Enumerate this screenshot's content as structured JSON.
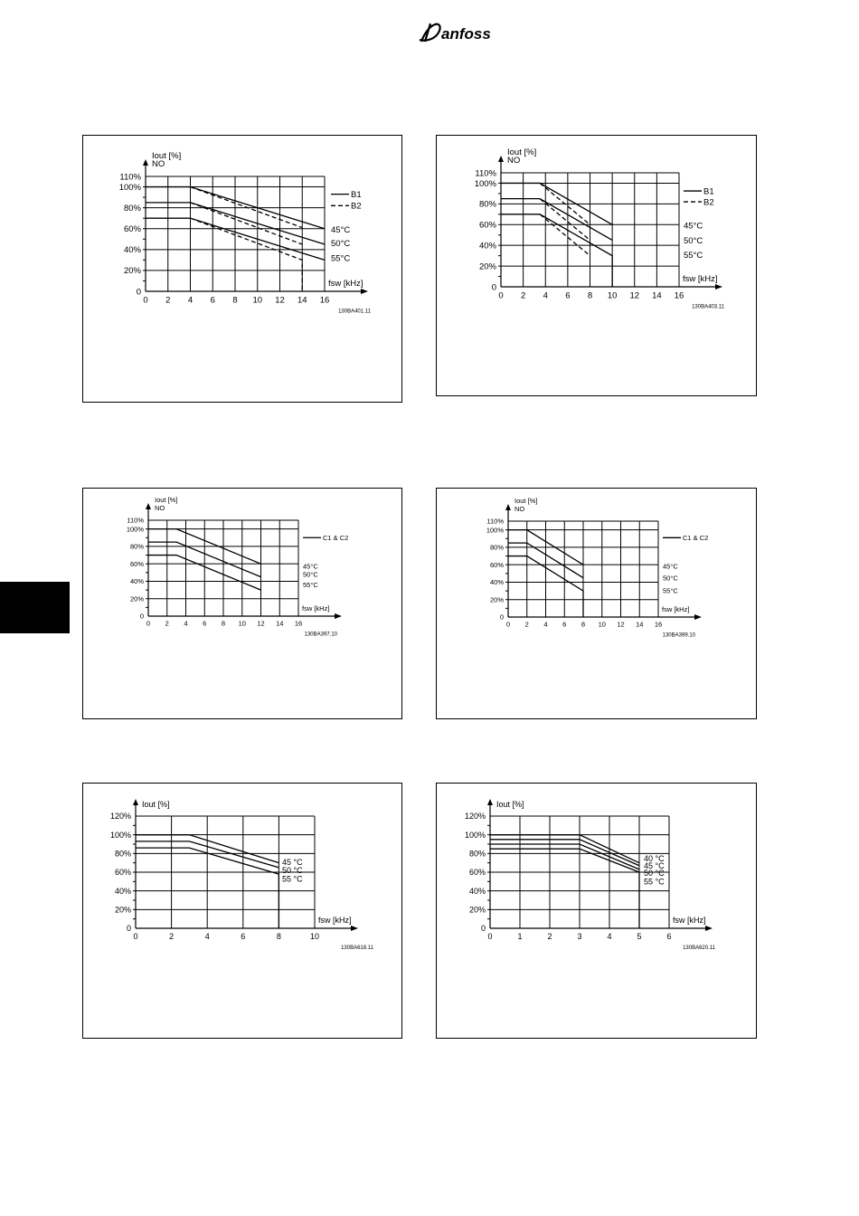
{
  "header": {
    "logo_text": "Danfoss"
  },
  "colors": {
    "line": "#000000",
    "background": "#ffffff",
    "side_tab": "#000000"
  },
  "chart_data": [
    {
      "type": "line",
      "ylabel": "Iout [%]",
      "ylabel2": "NO",
      "xlabel": "fsw [kHz]",
      "xlim": [
        0,
        16
      ],
      "ylim": [
        0,
        110
      ],
      "xticks": [
        "0",
        "2",
        "4",
        "6",
        "8",
        "10",
        "12",
        "14",
        "16"
      ],
      "yticks": [
        {
          "v": 0,
          "t": "0"
        },
        {
          "v": 20,
          "t": "20%"
        },
        {
          "v": 40,
          "t": "40%"
        },
        {
          "v": 60,
          "t": "60%"
        },
        {
          "v": 80,
          "t": "80%"
        },
        {
          "v": 100,
          "t": "100%"
        },
        {
          "v": 110,
          "t": "110%"
        }
      ],
      "grid": true,
      "legend": [
        {
          "label": "B1",
          "style": "solid"
        },
        {
          "label": "B2",
          "style": "dashed"
        }
      ],
      "temp_labels": [
        "45°C",
        "50°C",
        "55°C"
      ],
      "series": [
        {
          "temp": "45°C",
          "variant": "B1",
          "style": "solid",
          "points": [
            [
              0,
              100
            ],
            [
              4,
              100
            ],
            [
              16,
              60
            ]
          ]
        },
        {
          "temp": "50°C",
          "variant": "B1",
          "style": "solid",
          "points": [
            [
              0,
              85
            ],
            [
              4,
              85
            ],
            [
              16,
              45
            ]
          ]
        },
        {
          "temp": "55°C",
          "variant": "B1",
          "style": "solid",
          "points": [
            [
              0,
              70
            ],
            [
              4,
              70
            ],
            [
              16,
              30
            ]
          ]
        },
        {
          "temp": "45°C",
          "variant": "B2",
          "style": "dashed",
          "points": [
            [
              4,
              100
            ],
            [
              14,
              61
            ]
          ]
        },
        {
          "temp": "50°C",
          "variant": "B2",
          "style": "dashed",
          "points": [
            [
              4,
              85
            ],
            [
              14,
              45
            ]
          ]
        },
        {
          "temp": "55°C",
          "variant": "B2",
          "style": "dashed",
          "points": [
            [
              4,
              70
            ],
            [
              14,
              30
            ],
            [
              14,
              0
            ]
          ]
        }
      ],
      "code": "130BA401.11"
    },
    {
      "type": "line",
      "ylabel": "Iout [%]",
      "ylabel2": "NO",
      "xlabel": "fsw [kHz]",
      "xlim": [
        0,
        16
      ],
      "ylim": [
        0,
        110
      ],
      "xticks": [
        "0",
        "2",
        "4",
        "6",
        "8",
        "10",
        "12",
        "14",
        "16"
      ],
      "yticks": [
        {
          "v": 0,
          "t": "0"
        },
        {
          "v": 20,
          "t": "20%"
        },
        {
          "v": 40,
          "t": "40%"
        },
        {
          "v": 60,
          "t": "60%"
        },
        {
          "v": 80,
          "t": "80%"
        },
        {
          "v": 100,
          "t": "100%"
        },
        {
          "v": 110,
          "t": "110%"
        }
      ],
      "grid": true,
      "legend": [
        {
          "label": "B1",
          "style": "solid"
        },
        {
          "label": "B2",
          "style": "dashed"
        }
      ],
      "temp_labels": [
        "45°C",
        "50°C",
        "55°C"
      ],
      "series": [
        {
          "temp": "45°C",
          "variant": "B1",
          "style": "solid",
          "points": [
            [
              0,
              100
            ],
            [
              3.5,
              100
            ],
            [
              10,
              60
            ]
          ]
        },
        {
          "temp": "50°C",
          "variant": "B1",
          "style": "solid",
          "points": [
            [
              0,
              85
            ],
            [
              3.5,
              85
            ],
            [
              10,
              45
            ]
          ]
        },
        {
          "temp": "55°C",
          "variant": "B1",
          "style": "solid",
          "points": [
            [
              0,
              70
            ],
            [
              3.5,
              70
            ],
            [
              10,
              30
            ],
            [
              10,
              0
            ]
          ]
        },
        {
          "temp": "45°C",
          "variant": "B2",
          "style": "dashed",
          "points": [
            [
              3.5,
              100
            ],
            [
              8,
              60
            ]
          ]
        },
        {
          "temp": "50°C",
          "variant": "B2",
          "style": "dashed",
          "points": [
            [
              3.5,
              85
            ],
            [
              8,
              45
            ]
          ]
        },
        {
          "temp": "55°C",
          "variant": "B2",
          "style": "dashed",
          "points": [
            [
              3.5,
              70
            ],
            [
              8,
              30
            ]
          ]
        }
      ],
      "code": "130BA403.11"
    },
    {
      "type": "line",
      "ylabel": "Iout [%]",
      "ylabel2": "NO",
      "xlabel": "fsw [kHz]",
      "xlim": [
        0,
        16
      ],
      "ylim": [
        0,
        110
      ],
      "xticks": [
        "0",
        "2",
        "4",
        "6",
        "8",
        "10",
        "12",
        "14",
        "16"
      ],
      "yticks": [
        {
          "v": 0,
          "t": "0"
        },
        {
          "v": 20,
          "t": "20%"
        },
        {
          "v": 40,
          "t": "40%"
        },
        {
          "v": 60,
          "t": "60%"
        },
        {
          "v": 80,
          "t": "80%"
        },
        {
          "v": 100,
          "t": "100%"
        },
        {
          "v": 110,
          "t": "110%"
        }
      ],
      "grid": true,
      "legend": [
        {
          "label": "C1 & C2",
          "style": "solid"
        }
      ],
      "temp_labels": [
        "45°C",
        "50°C",
        "55°C"
      ],
      "series": [
        {
          "temp": "45°C",
          "style": "solid",
          "points": [
            [
              0,
              100
            ],
            [
              3,
              100
            ],
            [
              12,
              60
            ]
          ]
        },
        {
          "temp": "50°C",
          "style": "solid",
          "points": [
            [
              0,
              85
            ],
            [
              3,
              85
            ],
            [
              12,
              45
            ]
          ]
        },
        {
          "temp": "55°C",
          "style": "solid",
          "points": [
            [
              0,
              70
            ],
            [
              3,
              70
            ],
            [
              12,
              30
            ]
          ]
        }
      ],
      "code": "130BA397.10"
    },
    {
      "type": "line",
      "ylabel": "Iout [%]",
      "ylabel2": "NO",
      "xlabel": "fsw [kHz]",
      "xlim": [
        0,
        16
      ],
      "ylim": [
        0,
        110
      ],
      "xticks": [
        "0",
        "2",
        "4",
        "6",
        "8",
        "10",
        "12",
        "14",
        "16"
      ],
      "yticks": [
        {
          "v": 0,
          "t": "0"
        },
        {
          "v": 20,
          "t": "20%"
        },
        {
          "v": 40,
          "t": "40%"
        },
        {
          "v": 60,
          "t": "60%"
        },
        {
          "v": 80,
          "t": "80%"
        },
        {
          "v": 100,
          "t": "100%"
        },
        {
          "v": 110,
          "t": "110%"
        }
      ],
      "grid": true,
      "legend": [
        {
          "label": "C1 & C2",
          "style": "solid"
        }
      ],
      "temp_labels": [
        "45°C",
        "50°C",
        "55°C"
      ],
      "series": [
        {
          "temp": "45°C",
          "style": "solid",
          "points": [
            [
              0,
              100
            ],
            [
              2,
              100
            ],
            [
              8,
              60
            ]
          ]
        },
        {
          "temp": "50°C",
          "style": "solid",
          "points": [
            [
              0,
              85
            ],
            [
              2,
              85
            ],
            [
              8,
              45
            ]
          ]
        },
        {
          "temp": "55°C",
          "style": "solid",
          "points": [
            [
              0,
              70
            ],
            [
              2,
              70
            ],
            [
              8,
              30
            ],
            [
              8,
              0
            ]
          ]
        }
      ],
      "code": "130BA399.10"
    },
    {
      "type": "line",
      "ylabel": "Iout [%]",
      "ylabel2": "",
      "xlabel": "fsw [kHz]",
      "xlim": [
        0,
        10
      ],
      "ylim": [
        0,
        120
      ],
      "xticks": [
        "0",
        "2",
        "4",
        "6",
        "8",
        "10"
      ],
      "yticks": [
        {
          "v": 0,
          "t": "0"
        },
        {
          "v": 20,
          "t": "20%"
        },
        {
          "v": 40,
          "t": "40%"
        },
        {
          "v": 60,
          "t": "60%"
        },
        {
          "v": 80,
          "t": "80%"
        },
        {
          "v": 100,
          "t": "100%"
        },
        {
          "v": 120,
          "t": "120%"
        }
      ],
      "grid": true,
      "legend": [],
      "temp_labels": [
        "45 °C",
        "50 °C",
        "55 °C"
      ],
      "series": [
        {
          "temp": "45 °C",
          "style": "solid",
          "points": [
            [
              0,
              100
            ],
            [
              3,
              100
            ],
            [
              8,
              70
            ]
          ]
        },
        {
          "temp": "50 °C",
          "style": "solid",
          "points": [
            [
              0,
              93
            ],
            [
              3,
              93
            ],
            [
              8,
              65
            ]
          ]
        },
        {
          "temp": "55 °C",
          "style": "solid",
          "points": [
            [
              0,
              86
            ],
            [
              3,
              86
            ],
            [
              8,
              58
            ],
            [
              8,
              0
            ]
          ]
        }
      ],
      "code": "130BA618.11"
    },
    {
      "type": "line",
      "ylabel": "Iout [%]",
      "ylabel2": "",
      "xlabel": "fsw [kHz]",
      "xlim": [
        0,
        6
      ],
      "ylim": [
        0,
        120
      ],
      "xticks": [
        "0",
        "1",
        "2",
        "3",
        "4",
        "5",
        "6"
      ],
      "yticks": [
        {
          "v": 0,
          "t": "0"
        },
        {
          "v": 20,
          "t": "20%"
        },
        {
          "v": 40,
          "t": "40%"
        },
        {
          "v": 60,
          "t": "60%"
        },
        {
          "v": 80,
          "t": "80%"
        },
        {
          "v": 100,
          "t": "100%"
        },
        {
          "v": 120,
          "t": "120%"
        }
      ],
      "grid": true,
      "legend": [],
      "temp_labels": [
        "40 °C",
        "45 °C",
        "50 °C",
        "55 °C"
      ],
      "series": [
        {
          "temp": "40 °C",
          "style": "solid",
          "points": [
            [
              0,
              100
            ],
            [
              3,
              100
            ],
            [
              5,
              70
            ]
          ]
        },
        {
          "temp": "45 °C",
          "style": "solid",
          "points": [
            [
              0,
              95
            ],
            [
              3,
              95
            ],
            [
              5,
              67
            ]
          ]
        },
        {
          "temp": "50 °C",
          "style": "solid",
          "points": [
            [
              0,
              90
            ],
            [
              3,
              90
            ],
            [
              5,
              63
            ]
          ]
        },
        {
          "temp": "55 °C",
          "style": "solid",
          "points": [
            [
              0,
              85
            ],
            [
              3,
              85
            ],
            [
              5,
              60
            ],
            [
              5,
              0
            ]
          ]
        }
      ],
      "code": "130BA620.11"
    }
  ]
}
